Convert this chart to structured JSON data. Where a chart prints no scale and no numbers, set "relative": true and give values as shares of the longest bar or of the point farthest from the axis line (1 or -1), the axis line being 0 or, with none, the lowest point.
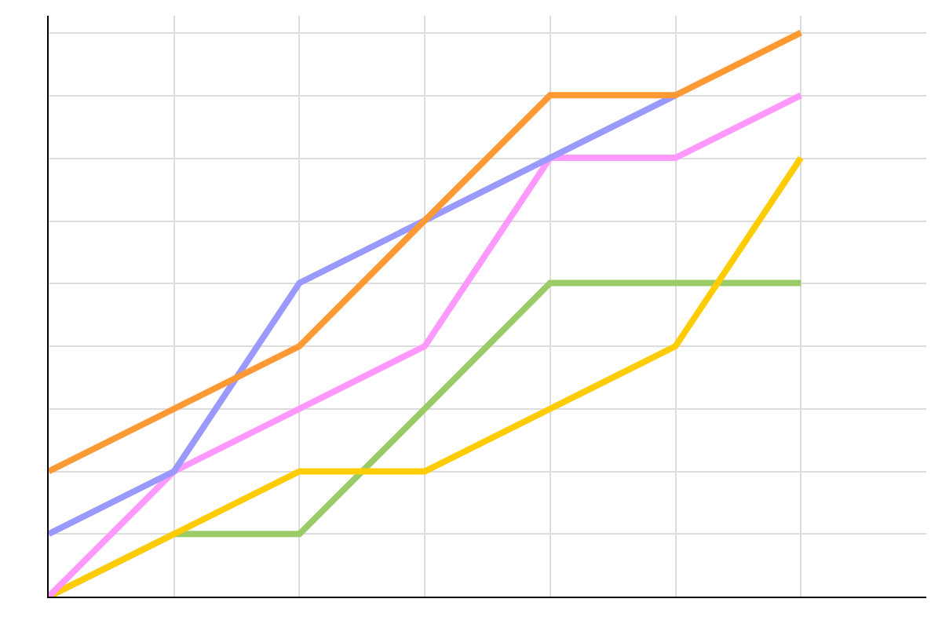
{
  "chart_data": {
    "type": "line",
    "relative": true,
    "grid": true,
    "marker": "none",
    "line_style": "solid",
    "categories": [
      null,
      null,
      null,
      null,
      null,
      null,
      null
    ],
    "series": [
      {
        "color": "#99cc66",
        "values": [
          0,
          0.111,
          0.111,
          0.333,
          0.556,
          0.556,
          0.556
        ]
      },
      {
        "color": "#ffcc00",
        "values": [
          0,
          0.111,
          0.222,
          0.222,
          0.333,
          0.444,
          0.778
        ]
      },
      {
        "color": "#ff99ff",
        "values": [
          0,
          0.222,
          0.333,
          0.444,
          0.778,
          0.778,
          0.889
        ]
      },
      {
        "color": "#9999ff",
        "values": [
          0.111,
          0.222,
          0.556,
          0.667,
          0.778,
          0.889,
          null
        ]
      },
      {
        "color": "#ff9933",
        "values": [
          0.222,
          0.333,
          0.444,
          0.667,
          0.889,
          0.889,
          1
        ]
      }
    ]
  }
}
